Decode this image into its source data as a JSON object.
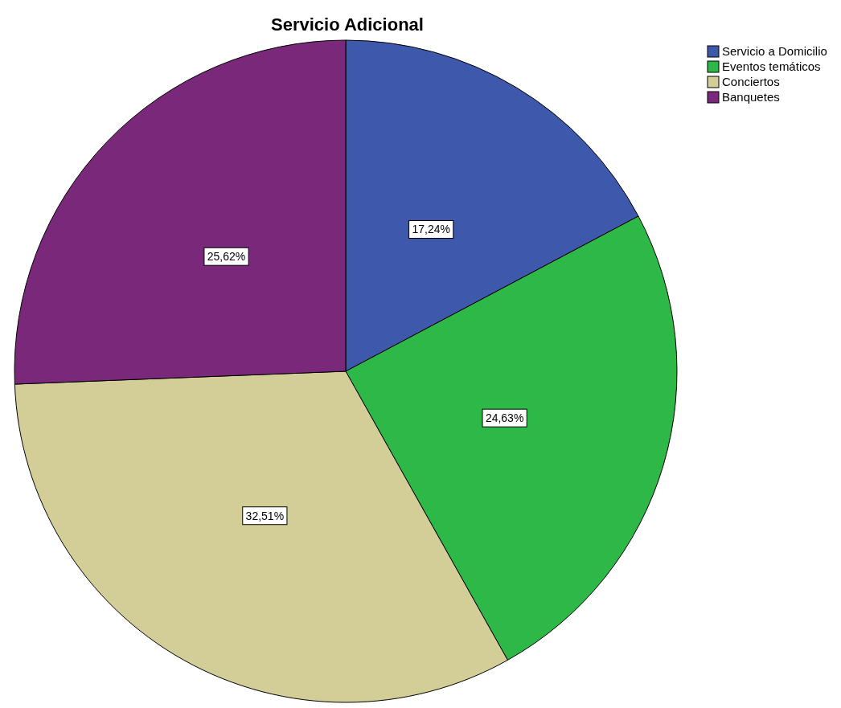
{
  "chart_data": {
    "type": "pie",
    "title": "Servicio Adicional",
    "categories": [
      "Servicio a Domicilio",
      "Eventos temáticos",
      "Conciertos",
      "Banquetes"
    ],
    "values": [
      17.24,
      24.63,
      32.51,
      25.62
    ],
    "value_labels": [
      "17,24%",
      "24,63%",
      "32,51%",
      "25,62%"
    ],
    "colors": [
      "#3e58ac",
      "#2eb848",
      "#d3ce97",
      "#79287a"
    ],
    "legend": "top right"
  }
}
